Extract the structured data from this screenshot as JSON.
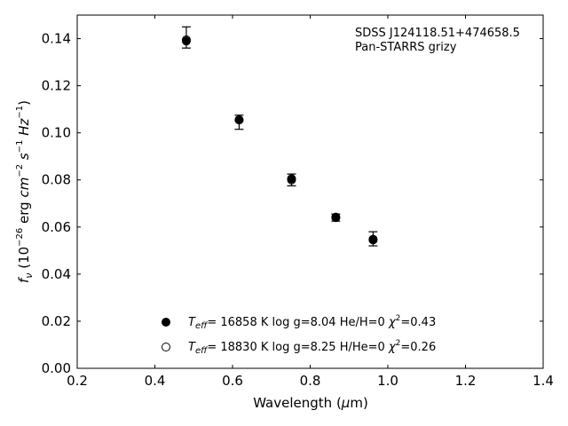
{
  "chart_data": {
    "type": "scatter",
    "xlabel": "Wavelength (μm)",
    "ylabel": "f_ν (10^−26 erg cm^−2 s^−1 Hz^−1)",
    "xlim": [
      0.2,
      1.4
    ],
    "ylim": [
      0.0,
      0.15
    ],
    "x_ticks": [
      "0.2",
      "0.4",
      "0.6",
      "0.8",
      "1.0",
      "1.2",
      "1.4"
    ],
    "y_ticks": [
      "0.00",
      "0.02",
      "0.04",
      "0.06",
      "0.08",
      "0.10",
      "0.12",
      "0.14"
    ],
    "annotation": [
      "SDSS J124118.51+474658.5",
      "Pan-STARRS grizy"
    ],
    "legend_position": "lower-center",
    "grid": false,
    "observed": {
      "x": [
        0.481,
        0.617,
        0.752,
        0.866,
        0.962
      ],
      "y": [
        0.1405,
        0.1045,
        0.08,
        0.064,
        0.055
      ],
      "err": [
        0.0045,
        0.003,
        0.0025,
        0.0015,
        0.003
      ]
    },
    "series": [
      {
        "name": "T_eff= 16858 K  log g=8.04  He/H=0  χ²=0.43",
        "marker": "filled-circle",
        "x": [
          0.481,
          0.617,
          0.752,
          0.866,
          0.962
        ],
        "y": [
          0.139,
          0.1055,
          0.0805,
          0.0642,
          0.0548
        ]
      },
      {
        "name": "T_eff= 18830 K  log g=8.25  H/He=0  χ²=0.26",
        "marker": "open-circle",
        "x": [
          0.481,
          0.617,
          0.752,
          0.866,
          0.962
        ],
        "y": [
          0.1395,
          0.1055,
          0.08,
          0.064,
          0.0545
        ]
      }
    ]
  },
  "legend_labels": {
    "teff_1": "16858 K",
    "logg_1": "log g=8.04",
    "comp_1": "He/H=0",
    "chi_1": "=0.43",
    "teff_2": "18830 K",
    "logg_2": "log g=8.25",
    "comp_2": "H/He=0",
    "chi_2": "=0.26"
  }
}
